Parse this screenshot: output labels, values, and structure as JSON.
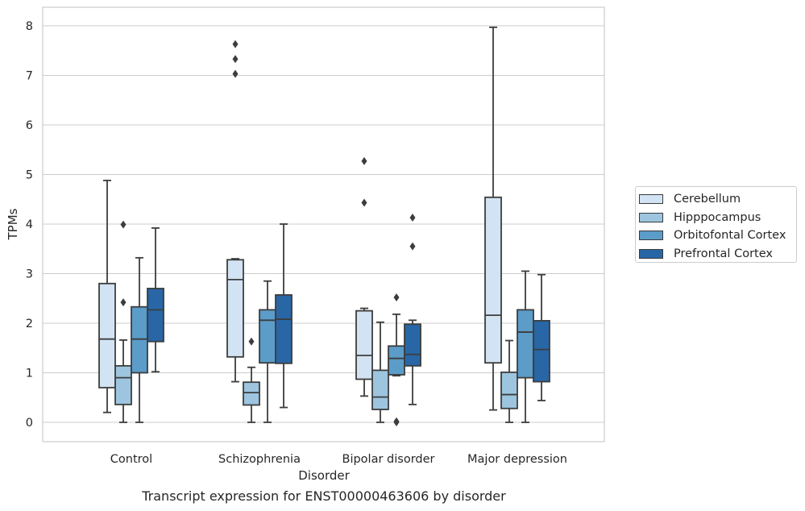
{
  "chart_data": {
    "type": "box",
    "title": "",
    "xlabel": "Disorder",
    "ylabel": "TPMs",
    "ylim": [
      -0.38,
      8.38
    ],
    "yticks": [
      0,
      1,
      2,
      3,
      4,
      5,
      6,
      7,
      8
    ],
    "grid": "horizontal",
    "legend_position": "outside-right",
    "categories": [
      "Control",
      "Schizophrenia",
      "Bipolar disorder",
      "Major depression"
    ],
    "series": [
      {
        "name": "Cerebellum",
        "color": "#d2e3f3",
        "boxes": [
          {
            "whislo": 0.2,
            "q1": 0.7,
            "med": 1.68,
            "q3": 2.8,
            "whishi": 4.88,
            "fliers": []
          },
          {
            "whislo": 0.82,
            "q1": 1.32,
            "med": 2.88,
            "q3": 3.28,
            "whishi": 3.3,
            "fliers": [
              7.03,
              7.33,
              7.63
            ]
          },
          {
            "whislo": 0.53,
            "q1": 0.87,
            "med": 1.35,
            "q3": 2.25,
            "whishi": 2.3,
            "fliers": [
              4.43,
              5.27
            ]
          },
          {
            "whislo": 0.25,
            "q1": 1.2,
            "med": 2.16,
            "q3": 4.54,
            "whishi": 7.97,
            "fliers": []
          }
        ]
      },
      {
        "name": "Hipppocampus",
        "color": "#9dc5df",
        "boxes": [
          {
            "whislo": 0.0,
            "q1": 0.36,
            "med": 0.9,
            "q3": 1.14,
            "whishi": 1.66,
            "fliers": [
              2.42,
              3.99
            ]
          },
          {
            "whislo": 0.0,
            "q1": 0.35,
            "med": 0.6,
            "q3": 0.81,
            "whishi": 1.11,
            "fliers": [
              1.63
            ]
          },
          {
            "whislo": 0.0,
            "q1": 0.26,
            "med": 0.51,
            "q3": 1.05,
            "whishi": 2.02,
            "fliers": []
          },
          {
            "whislo": 0.0,
            "q1": 0.28,
            "med": 0.56,
            "q3": 1.01,
            "whishi": 1.65,
            "fliers": []
          }
        ]
      },
      {
        "name": "Orbitofontal Cortex",
        "color": "#5b9cc9",
        "boxes": [
          {
            "whislo": 0.0,
            "q1": 1.0,
            "med": 1.68,
            "q3": 2.33,
            "whishi": 3.32,
            "fliers": []
          },
          {
            "whislo": 0.0,
            "q1": 1.2,
            "med": 2.06,
            "q3": 2.27,
            "whishi": 2.85,
            "fliers": []
          },
          {
            "whislo": 0.94,
            "q1": 0.96,
            "med": 1.29,
            "q3": 1.54,
            "whishi": 2.18,
            "fliers": [
              0.0,
              0.02,
              2.52
            ]
          },
          {
            "whislo": 0.0,
            "q1": 0.9,
            "med": 1.82,
            "q3": 2.27,
            "whishi": 3.05,
            "fliers": []
          }
        ]
      },
      {
        "name": "Prefrontal Cortex",
        "color": "#2866a6",
        "boxes": [
          {
            "whislo": 1.02,
            "q1": 1.63,
            "med": 2.27,
            "q3": 2.7,
            "whishi": 3.92,
            "fliers": []
          },
          {
            "whislo": 0.3,
            "q1": 1.19,
            "med": 2.08,
            "q3": 2.57,
            "whishi": 4.0,
            "fliers": []
          },
          {
            "whislo": 0.36,
            "q1": 1.14,
            "med": 1.37,
            "q3": 1.98,
            "whishi": 2.06,
            "fliers": [
              3.55,
              4.13
            ]
          },
          {
            "whislo": 0.44,
            "q1": 0.82,
            "med": 1.47,
            "q3": 2.05,
            "whishi": 2.98,
            "fliers": []
          }
        ]
      }
    ],
    "caption": "Transcript expression for ENST00000463606 by disorder"
  }
}
